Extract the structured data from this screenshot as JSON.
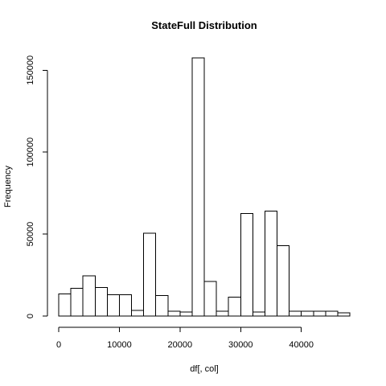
{
  "chart_data": {
    "type": "bar",
    "title": "StateFull  Distribution",
    "xlabel": "df[, col]",
    "ylabel": "Frequency",
    "bin_edges": [
      0,
      2000,
      4000,
      6000,
      8000,
      10000,
      12000,
      14000,
      16000,
      18000,
      20000,
      22000,
      24000,
      26000,
      28000,
      30000,
      32000,
      34000,
      36000,
      38000,
      40000,
      42000,
      44000,
      46000,
      48000
    ],
    "values": [
      13500,
      17000,
      24500,
      17500,
      13000,
      13000,
      3500,
      50500,
      12500,
      3000,
      2500,
      157500,
      21000,
      3000,
      11500,
      62500,
      2500,
      64000,
      43000,
      3000,
      3000,
      3000,
      3000,
      2000
    ],
    "xlim": [
      0,
      48000
    ],
    "ylim": [
      0,
      157500
    ],
    "x_ticks": [
      0,
      10000,
      20000,
      30000,
      40000
    ],
    "x_tick_labels": [
      "0",
      "10000",
      "20000",
      "30000",
      "40000"
    ],
    "y_ticks": [
      0,
      50000,
      100000,
      150000
    ],
    "y_tick_labels": [
      "0",
      "50000",
      "100000",
      "150000"
    ],
    "grid": false,
    "bar_fill": "#ffffff",
    "bar_stroke": "#000000"
  }
}
